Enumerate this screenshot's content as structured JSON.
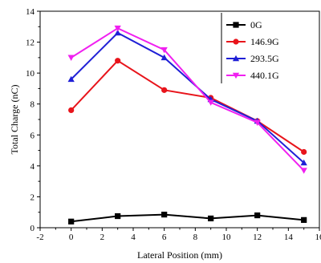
{
  "chart_data": {
    "type": "line",
    "title": "",
    "xlabel": "Lateral Position (mm)",
    "ylabel": "Total Charge (nC)",
    "xlim": [
      -2,
      16
    ],
    "ylim": [
      0,
      14
    ],
    "x_ticks": [
      -2,
      0,
      2,
      4,
      6,
      8,
      10,
      12,
      14,
      16
    ],
    "y_ticks": [
      0,
      2,
      4,
      6,
      8,
      10,
      12,
      14
    ],
    "grid": false,
    "legend_position": "top-right",
    "x": [
      0,
      3,
      6,
      9,
      12,
      15
    ],
    "series": [
      {
        "name": "0G",
        "color": "#000000",
        "marker": "square",
        "values": [
          0.4,
          0.75,
          0.85,
          0.6,
          0.8,
          0.5
        ]
      },
      {
        "name": "146.9G",
        "color": "#e8141b",
        "marker": "circle",
        "values": [
          7.6,
          10.8,
          8.9,
          8.4,
          6.9,
          4.9
        ]
      },
      {
        "name": "293.5G",
        "color": "#1f1fd6",
        "marker": "triangle-up",
        "values": [
          9.6,
          12.6,
          11.0,
          8.3,
          6.9,
          4.2
        ]
      },
      {
        "name": "440.1G",
        "color": "#f020f0",
        "marker": "triangle-down",
        "values": [
          11.0,
          12.9,
          11.5,
          8.1,
          6.8,
          3.7
        ]
      }
    ]
  }
}
